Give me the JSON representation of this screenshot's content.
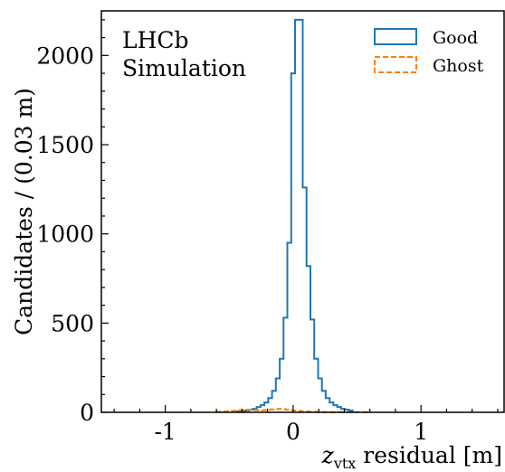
{
  "chart_data": {
    "type": "histogram",
    "xlabel_main": "z",
    "xlabel_sub": "vtx",
    "xlabel_rest": " residual [m]",
    "ylabel": "Candidates / (0.03 m)",
    "xlim": [
      -1.5,
      1.65
    ],
    "ylim": [
      0,
      2250
    ],
    "xticks": [
      -1,
      0,
      1
    ],
    "xtick_labels": [
      "-1",
      "0",
      "1"
    ],
    "yticks": [
      0,
      500,
      1000,
      1500,
      2000
    ],
    "ytick_labels": [
      "0",
      "500",
      "1000",
      "1500",
      "2000"
    ],
    "annotations": [
      "LHCb",
      "Simulation"
    ],
    "bin_width": 0.03,
    "series": [
      {
        "name": "Good",
        "style": "solid",
        "color": "#1f77b4",
        "edges_start": -0.435,
        "values": [
          5,
          5,
          10,
          15,
          20,
          30,
          40,
          55,
          80,
          120,
          190,
          300,
          530,
          950,
          1900,
          2200,
          2200,
          1260,
          820,
          520,
          300,
          190,
          120,
          80,
          55,
          40,
          30,
          20,
          15,
          10
        ]
      },
      {
        "name": "Ghost",
        "style": "dashed",
        "color": "#ff7f0e",
        "edges_start": -0.6,
        "values": [
          3,
          4,
          5,
          6,
          8,
          10,
          12,
          14,
          15,
          14,
          12,
          10,
          12,
          14,
          16,
          18,
          20,
          18,
          15,
          12,
          10,
          8,
          6,
          5,
          4,
          3,
          2,
          2,
          1,
          1,
          1,
          1,
          1,
          1,
          1,
          1,
          1,
          1,
          1,
          1
        ]
      }
    ],
    "legend": {
      "position": "top-right",
      "entries": [
        "Good",
        "Ghost"
      ]
    }
  }
}
